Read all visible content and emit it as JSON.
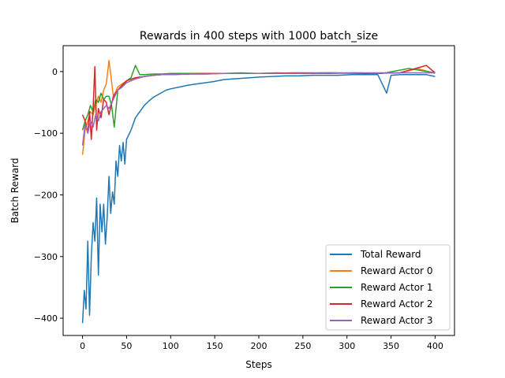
{
  "chart_data": {
    "type": "line",
    "title": "Rewards in 400 steps with 1000 batch_size",
    "xlabel": "Steps",
    "ylabel": "Batch Reward",
    "xlim": [
      -22,
      422
    ],
    "ylim": [
      -428,
      42
    ],
    "xticks": [
      0,
      50,
      100,
      150,
      200,
      250,
      300,
      350,
      400
    ],
    "yticks": [
      -400,
      -300,
      -200,
      -100,
      0
    ],
    "xtick_labels": [
      "0",
      "50",
      "100",
      "150",
      "200",
      "250",
      "300",
      "350",
      "400"
    ],
    "ytick_labels": [
      "−400",
      "−300",
      "−200",
      "−100",
      "0"
    ],
    "grid": false,
    "legend_position": "bottom-right",
    "series": [
      {
        "name": "Total Reward",
        "color": "#1f77b4",
        "x": [
          0,
          2,
          4,
          6,
          8,
          10,
          12,
          14,
          16,
          18,
          20,
          22,
          24,
          26,
          28,
          30,
          32,
          34,
          36,
          38,
          40,
          42,
          44,
          46,
          48,
          50,
          55,
          60,
          65,
          70,
          75,
          80,
          85,
          90,
          95,
          100,
          110,
          120,
          130,
          140,
          150,
          160,
          170,
          180,
          190,
          200,
          215,
          230,
          245,
          260,
          275,
          290,
          305,
          320,
          335,
          345,
          350,
          360,
          375,
          390,
          400
        ],
        "y": [
          -408,
          -355,
          -385,
          -275,
          -395,
          -300,
          -245,
          -275,
          -205,
          -330,
          -215,
          -260,
          -215,
          -280,
          -235,
          -170,
          -230,
          -195,
          -215,
          -145,
          -170,
          -120,
          -145,
          -115,
          -150,
          -110,
          -95,
          -75,
          -65,
          -55,
          -48,
          -42,
          -38,
          -34,
          -30,
          -28,
          -25,
          -22,
          -20,
          -18,
          -16,
          -13,
          -12,
          -11,
          -10,
          -9,
          -8,
          -7,
          -7,
          -6,
          -6,
          -6,
          -5,
          -5,
          -5,
          -35,
          -6,
          -5,
          -5,
          -5,
          -8
        ]
      },
      {
        "name": "Reward Actor 0",
        "color": "#ff7f0e",
        "x": [
          0,
          3,
          6,
          9,
          12,
          15,
          18,
          21,
          24,
          27,
          30,
          35,
          40,
          45,
          50,
          60,
          70,
          80,
          90,
          100,
          120,
          140,
          160,
          180,
          200,
          240,
          280,
          320,
          360,
          380,
          400
        ],
        "y": [
          -135,
          -95,
          -80,
          -65,
          -70,
          -55,
          -40,
          -50,
          -30,
          -20,
          18,
          -40,
          -25,
          -20,
          -15,
          -10,
          -8,
          -6,
          -5,
          -5,
          -4,
          -4,
          -3,
          -3,
          -3,
          -3,
          -2,
          -3,
          -2,
          5,
          -3
        ]
      },
      {
        "name": "Reward Actor 1",
        "color": "#2ca02c",
        "x": [
          0,
          3,
          6,
          9,
          12,
          15,
          18,
          21,
          24,
          27,
          30,
          33,
          36,
          40,
          45,
          50,
          55,
          60,
          65,
          70,
          80,
          90,
          100,
          120,
          140,
          160,
          180,
          200,
          220,
          250,
          280,
          310,
          340,
          370,
          400
        ],
        "y": [
          -95,
          -80,
          -70,
          -55,
          -65,
          -45,
          -50,
          -35,
          -45,
          -40,
          -40,
          -55,
          -90,
          -30,
          -25,
          -15,
          -10,
          10,
          -5,
          -5,
          -4,
          -4,
          -3,
          -3,
          -3,
          -3,
          -2,
          -3,
          -2,
          -3,
          -3,
          -2,
          -3,
          5,
          -2
        ]
      },
      {
        "name": "Reward Actor 2",
        "color": "#d62728",
        "x": [
          0,
          3,
          6,
          8,
          10,
          12,
          14,
          16,
          18,
          21,
          24,
          27,
          30,
          35,
          40,
          45,
          50,
          60,
          70,
          80,
          90,
          100,
          120,
          140,
          160,
          180,
          200,
          240,
          280,
          320,
          360,
          390,
          400
        ],
        "y": [
          -70,
          -80,
          -100,
          -65,
          -110,
          -60,
          8,
          -95,
          -60,
          -75,
          -45,
          -50,
          -70,
          -40,
          -30,
          -22,
          -15,
          -10,
          -8,
          -6,
          -5,
          -5,
          -4,
          -3,
          -3,
          -3,
          -3,
          -2,
          -2,
          -3,
          -2,
          10,
          -2
        ]
      },
      {
        "name": "Reward Actor 3",
        "color": "#9467bd",
        "x": [
          0,
          3,
          6,
          9,
          12,
          15,
          18,
          21,
          24,
          27,
          30,
          35,
          40,
          45,
          50,
          60,
          70,
          80,
          90,
          100,
          120,
          140,
          160,
          180,
          200,
          240,
          280,
          320,
          360,
          400
        ],
        "y": [
          -120,
          -85,
          -100,
          -80,
          -90,
          -70,
          -80,
          -65,
          -60,
          -55,
          -60,
          -45,
          -30,
          -25,
          -18,
          -12,
          -8,
          -6,
          -5,
          -5,
          -4,
          -4,
          -3,
          -3,
          -3,
          -3,
          -2,
          -2,
          -2,
          -2
        ]
      }
    ]
  }
}
